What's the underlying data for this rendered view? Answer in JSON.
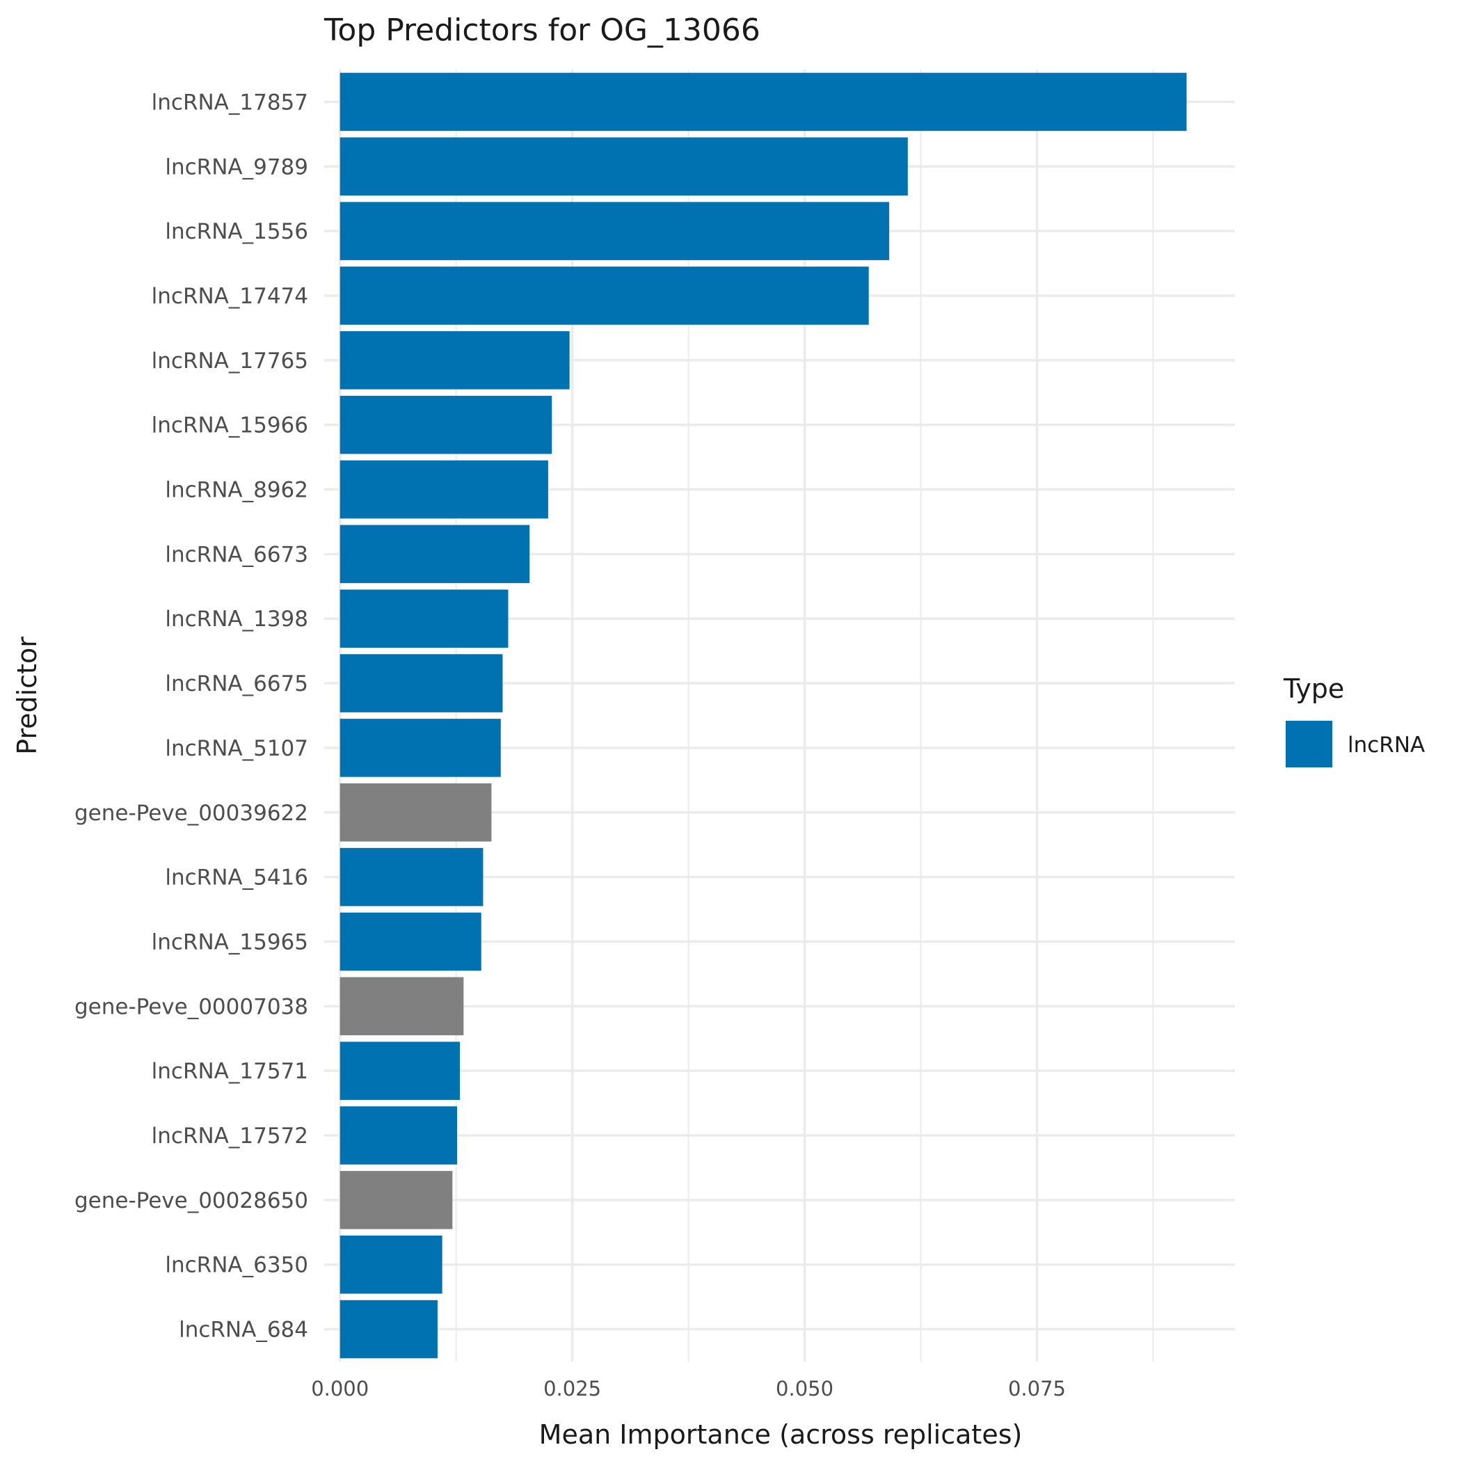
{
  "chart_data": {
    "type": "bar",
    "orientation": "horizontal",
    "title": "Top Predictors for OG_13066",
    "xlabel": "Mean Importance (across replicates)",
    "ylabel": "Predictor",
    "xlim": [
      -0.0017,
      0.0963
    ],
    "x_ticks": [
      0.0,
      0.025,
      0.05,
      0.075
    ],
    "x_tick_labels": [
      "0.000",
      "0.025",
      "0.050",
      "0.075"
    ],
    "grid": true,
    "legend": {
      "title": "Type",
      "placement": "right",
      "entries": [
        {
          "label": "lncRNA",
          "color": "#0072B2"
        }
      ]
    },
    "colors": {
      "lncRNA": "#0072B2",
      "gene": "#808080"
    },
    "categories": [
      "lncRNA_17857",
      "lncRNA_9789",
      "lncRNA_1556",
      "lncRNA_17474",
      "lncRNA_17765",
      "lncRNA_15966",
      "lncRNA_8962",
      "lncRNA_6673",
      "lncRNA_1398",
      "lncRNA_6675",
      "lncRNA_5107",
      "gene-Peve_00039622",
      "lncRNA_5416",
      "lncRNA_15965",
      "gene-Peve_00007038",
      "lncRNA_17571",
      "lncRNA_17572",
      "gene-Peve_00028650",
      "lncRNA_6350",
      "lncRNA_684"
    ],
    "types": [
      "lncRNA",
      "lncRNA",
      "lncRNA",
      "lncRNA",
      "lncRNA",
      "lncRNA",
      "lncRNA",
      "lncRNA",
      "lncRNA",
      "lncRNA",
      "lncRNA",
      "gene",
      "lncRNA",
      "lncRNA",
      "gene",
      "lncRNA",
      "lncRNA",
      "gene",
      "lncRNA",
      "lncRNA"
    ],
    "values": [
      0.0911,
      0.0611,
      0.0591,
      0.0569,
      0.0247,
      0.0228,
      0.0224,
      0.0204,
      0.0181,
      0.0175,
      0.0173,
      0.0163,
      0.0154,
      0.0152,
      0.0133,
      0.0129,
      0.0126,
      0.0121,
      0.011,
      0.0105
    ]
  }
}
